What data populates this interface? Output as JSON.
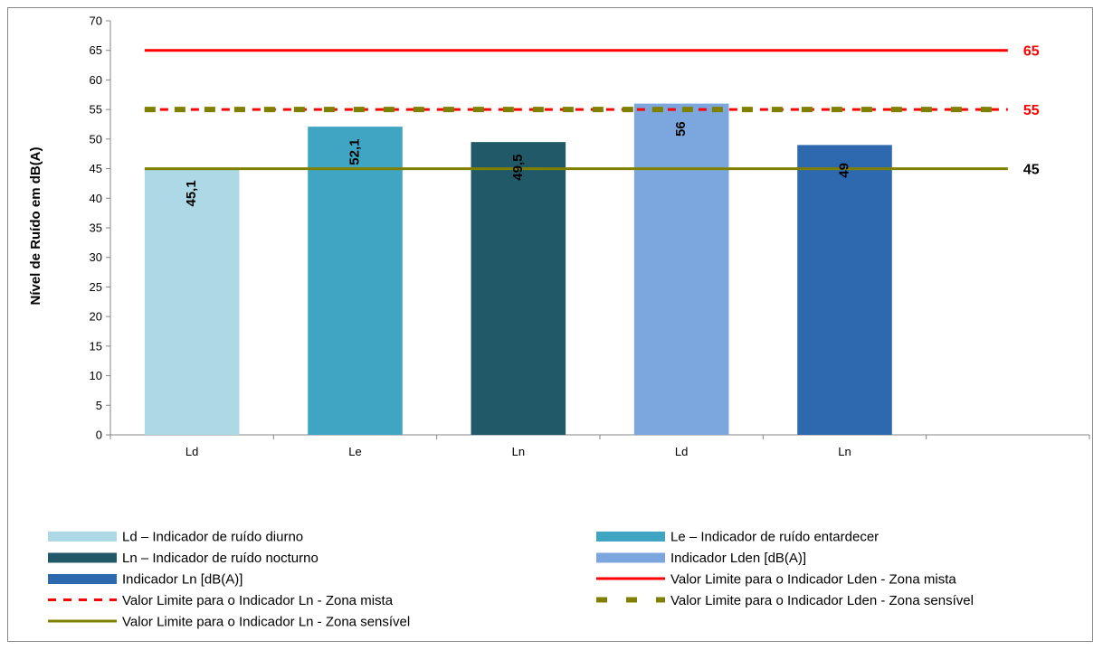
{
  "chart_data": {
    "type": "bar",
    "ylabel": "Nível de Ruído em dB(A)",
    "ylim": [
      0,
      70
    ],
    "ytick_step": 5,
    "grid": false,
    "categories": [
      "Ld",
      "Le",
      "Ln",
      "Ld",
      "Ln",
      ""
    ],
    "bars": [
      {
        "category": "Ld",
        "value": 45.1,
        "label": "45,1",
        "color": "#add8e6"
      },
      {
        "category": "Le",
        "value": 52.1,
        "label": "52,1",
        "color": "#3fa5c3"
      },
      {
        "category": "Ln",
        "value": 49.5,
        "label": "49,5",
        "color": "#215968"
      },
      {
        "category": "Ld",
        "value": 56,
        "label": "56",
        "color": "#7ba7de"
      },
      {
        "category": "Ln",
        "value": 49,
        "label": "49",
        "color": "#2e69b0"
      }
    ],
    "reference_lines": [
      {
        "value": 65,
        "label": "65",
        "label_color": "#ff0000",
        "color": "#ff0000",
        "style": "solid"
      },
      {
        "value": 55,
        "label": "55",
        "label_color": "#ff0000",
        "color": "#ff0000",
        "style": "dashed"
      },
      {
        "value": 55,
        "label": "",
        "label_color": "#808000",
        "color": "#808000",
        "style": "dashed-thick"
      },
      {
        "value": 45,
        "label": "45",
        "label_color": "#000000",
        "color": "#808000",
        "style": "solid"
      }
    ],
    "legend_position": "bottom",
    "legend": [
      {
        "label": "Ld – Indicador de ruído diurno",
        "kind": "box",
        "color": "#add8e6"
      },
      {
        "label": "Le – Indicador de ruído entardecer",
        "kind": "box",
        "color": "#3fa5c3"
      },
      {
        "label": "Ln – Indicador de ruído nocturno",
        "kind": "box",
        "color": "#215968"
      },
      {
        "label": "Indicador Lden [dB(A)]",
        "kind": "box",
        "color": "#7ba7de"
      },
      {
        "label": "Indicador Ln [dB(A)]",
        "kind": "box",
        "color": "#2e69b0"
      },
      {
        "label": "Valor Limite para o Indicador Lden - Zona mista",
        "kind": "line",
        "color": "#ff0000",
        "style": "solid"
      },
      {
        "label": "Valor Limite para o Indicador Ln - Zona mista",
        "kind": "line",
        "color": "#ff0000",
        "style": "dashed"
      },
      {
        "label": "Valor Limite para o Indicador Lden - Zona sensível",
        "kind": "line",
        "color": "#808000",
        "style": "dashed-thick"
      },
      {
        "label": "Valor Limite para o Indicador Ln - Zona sensível",
        "kind": "line",
        "color": "#808000",
        "style": "solid"
      }
    ]
  }
}
